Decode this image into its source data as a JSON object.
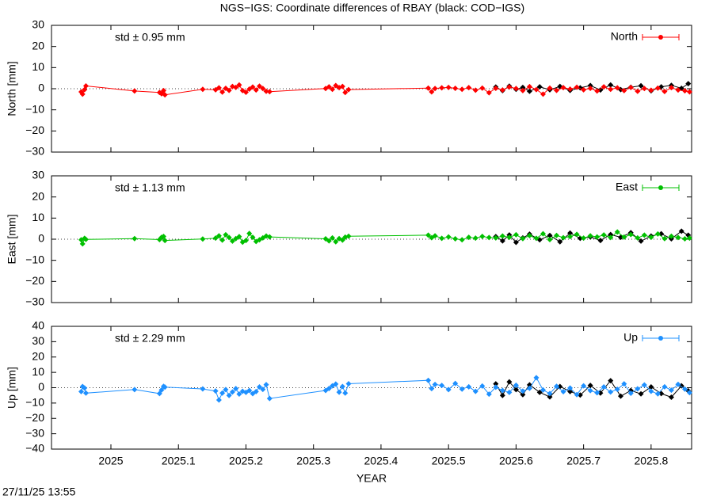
{
  "title": "NGS−IGS: Coordinate differences of RBAY (black: COD−IGS)",
  "x_label": "YEAR",
  "timestamp": "27/11/25 13:55",
  "chart_data": [
    {
      "type": "line",
      "y_label": "North [mm]",
      "annotation": "std ± 0.95 mm",
      "legend": "upper right",
      "xlim": [
        2024.912,
        2025.86
      ],
      "xticks": [
        2025,
        2025.1,
        2025.2,
        2025.3,
        2025.4,
        2025.5,
        2025.6,
        2025.7,
        2025.8
      ],
      "ylim": [
        -30,
        30
      ],
      "yticks": [
        -30,
        -20,
        -10,
        0,
        10,
        20,
        30
      ],
      "series": [
        {
          "name": "North",
          "color": "#ff0000",
          "x": [
            2024.956,
            2024.958,
            2024.961,
            2024.963,
            2025.035,
            2025.072,
            2025.075,
            2025.078,
            2025.08,
            2025.136,
            2025.155,
            2025.16,
            2025.165,
            2025.17,
            2025.175,
            2025.18,
            2025.185,
            2025.19,
            2025.195,
            2025.2,
            2025.205,
            2025.21,
            2025.215,
            2025.22,
            2025.225,
            2025.23,
            2025.235,
            2025.318,
            2025.323,
            2025.328,
            2025.333,
            2025.338,
            2025.343,
            2025.347,
            2025.352,
            2025.47,
            2025.475,
            2025.48,
            2025.49,
            2025.5,
            2025.51,
            2025.52,
            2025.53,
            2025.54,
            2025.55,
            2025.56,
            2025.57,
            2025.58,
            2025.59,
            2025.6,
            2025.61,
            2025.62,
            2025.63,
            2025.64,
            2025.65,
            2025.66,
            2025.67,
            2025.68,
            2025.69,
            2025.7,
            2025.71,
            2025.72,
            2025.73,
            2025.74,
            2025.75,
            2025.76,
            2025.77,
            2025.78,
            2025.79,
            2025.8,
            2025.81,
            2025.82,
            2025.83,
            2025.84,
            2025.85,
            2025.857
          ],
          "values": [
            -1.5,
            -2.6,
            -0.4,
            1.3,
            -1.1,
            -1.8,
            -2.4,
            -0.9,
            -2.9,
            -0.3,
            -0.5,
            0.4,
            -1.6,
            0.2,
            -0.8,
            1.1,
            0.6,
            1.8,
            -0.9,
            -1.7,
            -0.2,
            0.8,
            -0.6,
            1.2,
            0.1,
            -1.2,
            -1.4,
            0.1,
            0.9,
            -0.3,
            1.5,
            0.5,
            1.1,
            -1.8,
            -0.4,
            0.3,
            -1.5,
            0.1,
            0.4,
            0.6,
            0.2,
            -0.3,
            0.5,
            -0.7,
            0.3,
            -1.9,
            0.2,
            -0.6,
            0.8,
            0.1,
            -0.9,
            1.0,
            -0.4,
            -2.6,
            0.3,
            -0.8,
            0.5,
            -0.2,
            0.7,
            -0.5,
            0.2,
            -1.1,
            0.9,
            -0.3,
            0.4,
            -0.9,
            0.6,
            -1.2,
            0.1,
            -0.7,
            0.3,
            -1.3,
            0.5,
            -0.6,
            -1.0,
            -1.5
          ]
        },
        {
          "color": "#000000",
          "x": [
            2025.57,
            2025.58,
            2025.59,
            2025.6,
            2025.61,
            2025.62,
            2025.635,
            2025.65,
            2025.665,
            2025.68,
            2025.695,
            2025.71,
            2025.725,
            2025.74,
            2025.755,
            2025.77,
            2025.785,
            2025.8,
            2025.815,
            2025.83,
            2025.845,
            2025.855
          ],
          "values": [
            0.8,
            -0.9,
            1.2,
            -0.3,
            0.6,
            -1.2,
            0.9,
            -0.5,
            1.1,
            -0.8,
            0.4,
            1.5,
            -0.6,
            1.8,
            -0.4,
            0.7,
            1.4,
            -1.0,
            0.9,
            1.6,
            0.2,
            2.4
          ]
        }
      ]
    },
    {
      "type": "line",
      "y_label": "East [mm]",
      "annotation": "std ± 1.13 mm",
      "legend": "upper right",
      "xlim": [
        2024.912,
        2025.86
      ],
      "xticks": [
        2025,
        2025.1,
        2025.2,
        2025.3,
        2025.4,
        2025.5,
        2025.6,
        2025.7,
        2025.8
      ],
      "ylim": [
        -30,
        30
      ],
      "yticks": [
        -30,
        -20,
        -10,
        0,
        10,
        20,
        30
      ],
      "series": [
        {
          "name": "East",
          "color": "#00c000",
          "x": [
            2024.956,
            2024.958,
            2024.961,
            2024.963,
            2025.035,
            2025.072,
            2025.075,
            2025.078,
            2025.08,
            2025.136,
            2025.155,
            2025.16,
            2025.165,
            2025.17,
            2025.175,
            2025.18,
            2025.185,
            2025.19,
            2025.195,
            2025.2,
            2025.205,
            2025.21,
            2025.215,
            2025.22,
            2025.225,
            2025.23,
            2025.235,
            2025.318,
            2025.323,
            2025.328,
            2025.333,
            2025.338,
            2025.343,
            2025.347,
            2025.352,
            2025.47,
            2025.475,
            2025.48,
            2025.49,
            2025.5,
            2025.51,
            2025.52,
            2025.53,
            2025.54,
            2025.55,
            2025.56,
            2025.57,
            2025.58,
            2025.59,
            2025.6,
            2025.61,
            2025.62,
            2025.63,
            2025.64,
            2025.65,
            2025.66,
            2025.67,
            2025.68,
            2025.69,
            2025.7,
            2025.71,
            2025.72,
            2025.73,
            2025.74,
            2025.75,
            2025.76,
            2025.77,
            2025.78,
            2025.79,
            2025.8,
            2025.81,
            2025.82,
            2025.83,
            2025.84,
            2025.85,
            2025.857
          ],
          "values": [
            -0.3,
            -2.2,
            0.4,
            -0.1,
            0.3,
            -0.2,
            0.9,
            1.3,
            -0.6,
            0.1,
            0.5,
            1.6,
            -0.4,
            2.1,
            0.8,
            -0.9,
            0.3,
            1.2,
            -1.4,
            -0.6,
            2.7,
            0.9,
            -1.1,
            -0.3,
            0.6,
            1.5,
            1.1,
            0.2,
            -0.8,
            0.6,
            -1.2,
            0.3,
            -0.4,
            1.0,
            1.4,
            1.9,
            0.7,
            1.6,
            0.4,
            1.1,
            0.2,
            -0.3,
            0.9,
            0.5,
            1.3,
            0.8,
            0.6,
            1.5,
            0.9,
            2.1,
            0.3,
            1.7,
            0.4,
            2.6,
            -0.2,
            1.8,
            0.7,
            1.2,
            2.3,
            0.5,
            1.6,
            1.1,
            2.0,
            0.8,
            3.4,
            1.0,
            2.2,
            0.6,
            1.9,
            0.9,
            2.5,
            0.3,
            1.4,
            0.8,
            0.2,
            0.5
          ]
        },
        {
          "color": "#000000",
          "x": [
            2025.57,
            2025.58,
            2025.59,
            2025.6,
            2025.61,
            2025.62,
            2025.635,
            2025.65,
            2025.665,
            2025.68,
            2025.695,
            2025.71,
            2025.725,
            2025.74,
            2025.755,
            2025.77,
            2025.785,
            2025.8,
            2025.815,
            2025.83,
            2025.845,
            2025.855
          ],
          "values": [
            1.2,
            -0.8,
            2.0,
            -1.5,
            0.6,
            2.4,
            -0.3,
            1.8,
            -1.2,
            2.9,
            0.4,
            1.1,
            -0.6,
            2.2,
            0.9,
            3.1,
            -0.9,
            1.5,
            2.6,
            0.2,
            3.8,
            1.9
          ]
        }
      ]
    },
    {
      "type": "line",
      "y_label": "Up [mm]",
      "annotation": "std ± 2.29 mm",
      "legend": "upper right",
      "xlim": [
        2024.912,
        2025.86
      ],
      "xticks": [
        2025,
        2025.1,
        2025.2,
        2025.3,
        2025.4,
        2025.5,
        2025.6,
        2025.7,
        2025.8
      ],
      "ylim": [
        -40,
        40
      ],
      "yticks": [
        -40,
        -30,
        -20,
        -10,
        0,
        10,
        20,
        30,
        40
      ],
      "series": [
        {
          "name": "Up",
          "color": "#1e90ff",
          "x": [
            2024.956,
            2024.958,
            2024.961,
            2024.963,
            2025.035,
            2025.072,
            2025.075,
            2025.078,
            2025.08,
            2025.136,
            2025.155,
            2025.16,
            2025.165,
            2025.17,
            2025.175,
            2025.18,
            2025.185,
            2025.19,
            2025.195,
            2025.2,
            2025.205,
            2025.21,
            2025.215,
            2025.22,
            2025.225,
            2025.23,
            2025.235,
            2025.318,
            2025.323,
            2025.328,
            2025.333,
            2025.338,
            2025.343,
            2025.347,
            2025.352,
            2025.47,
            2025.475,
            2025.48,
            2025.49,
            2025.5,
            2025.51,
            2025.52,
            2025.53,
            2025.54,
            2025.55,
            2025.56,
            2025.57,
            2025.58,
            2025.59,
            2025.6,
            2025.61,
            2025.62,
            2025.63,
            2025.64,
            2025.65,
            2025.66,
            2025.67,
            2025.68,
            2025.69,
            2025.7,
            2025.71,
            2025.72,
            2025.73,
            2025.74,
            2025.75,
            2025.76,
            2025.77,
            2025.78,
            2025.79,
            2025.8,
            2025.81,
            2025.82,
            2025.83,
            2025.84,
            2025.85,
            2025.857
          ],
          "values": [
            -2.5,
            0.8,
            -0.2,
            -3.5,
            -1.2,
            -3.8,
            -1.5,
            0.9,
            0.4,
            -0.8,
            -2.1,
            -8.0,
            -3.5,
            -1.2,
            -5.0,
            -2.8,
            -0.6,
            -4.1,
            -2.3,
            -3.0,
            -1.8,
            -3.9,
            -2.5,
            0.5,
            -1.1,
            2.0,
            -7.0,
            -1.8,
            -0.5,
            1.2,
            2.4,
            -2.9,
            0.8,
            -3.5,
            2.6,
            4.8,
            -0.6,
            2.1,
            1.5,
            -1.2,
            2.8,
            -0.9,
            0.6,
            -2.4,
            1.1,
            -4.2,
            0.3,
            -1.8,
            -3.0,
            1.6,
            -2.2,
            -0.4,
            6.5,
            -1.5,
            -3.8,
            0.9,
            -2.6,
            -0.2,
            -4.5,
            1.2,
            -1.9,
            -3.3,
            0.5,
            -2.8,
            -1.0,
            2.5,
            -3.6,
            -0.7,
            1.8,
            -2.3,
            -4.0,
            0.6,
            -1.6,
            2.2,
            -0.9,
            -3.2
          ]
        },
        {
          "color": "#000000",
          "x": [
            2025.57,
            2025.58,
            2025.59,
            2025.6,
            2025.61,
            2025.62,
            2025.635,
            2025.65,
            2025.665,
            2025.68,
            2025.695,
            2025.71,
            2025.725,
            2025.74,
            2025.755,
            2025.77,
            2025.785,
            2025.8,
            2025.815,
            2025.83,
            2025.845,
            2025.855
          ],
          "values": [
            2.5,
            -5.0,
            3.8,
            -1.2,
            -4.5,
            1.9,
            -3.0,
            -6.0,
            0.8,
            -2.5,
            -4.8,
            1.5,
            -3.5,
            4.6,
            -5.5,
            -1.8,
            -4.0,
            0.5,
            -3.8,
            -6.2,
            1.2,
            -2.0
          ]
        }
      ]
    }
  ]
}
